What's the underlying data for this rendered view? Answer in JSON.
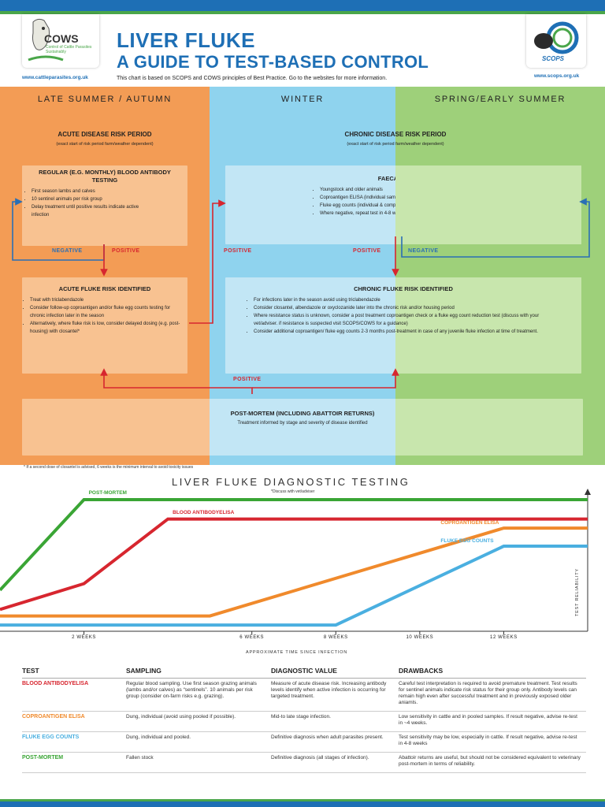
{
  "header": {
    "title_line1": "LIVER FLUKE",
    "title_line2": "A GUIDE TO TEST-BASED CONTROL",
    "subtitle": "This chart is based on SCOPS and COWS principles of Best Practice. Go to the websites for more information.",
    "url_left": "www.cattleparasites.org.uk",
    "url_right": "www.scops.org.uk",
    "logo_left_word": "COWS",
    "logo_left_sub": "Control of Cattle Parasites Sustainably",
    "logo_right_word": "SCOPS",
    "logo_right_ring": "Sustainable Control of Parasites"
  },
  "seasons": {
    "a": "LATE SUMMER / AUTUMN",
    "b": "WINTER",
    "c": "SPRING/EARLY SUMMER"
  },
  "acute_period": {
    "heading": "ACUTE DISEASE RISK PERIOD",
    "note": "(exact start of risk period farm/weather dependent)"
  },
  "chronic_period": {
    "heading": "CHRONIC DISEASE RISK PERIOD",
    "note": "(exact start of risk period farm/weather dependent)"
  },
  "blood_box": {
    "title": "REGULAR (E.G. MONTHLY) BLOOD ANTIBODY TESTING",
    "items": [
      "First season lambs and calves",
      "10 sentinel animals per risk group",
      "Delay treatment until positive results indicate active infection"
    ]
  },
  "faecal_box": {
    "title": "FAECAL TESTING",
    "items": [
      "Youngstock and older animals",
      "Coproantigen ELISA (individual samples)",
      "Fluke egg counts (individual & composite samples)",
      "Where negative, repeat test in 4-8 weeks"
    ]
  },
  "acute_box": {
    "title": "ACUTE FLUKE RISK IDENTIFIED",
    "items": [
      "Treat with triclabendazole",
      "Consider follow-up coproantigen and/or fluke egg counts testing for chronic infection later in the season",
      "Alternatively, where fluke risk is low, consider delayed dosing (e.g. post-housing) with closantel*"
    ]
  },
  "chronic_box": {
    "title": "CHRONIC FLUKE RISK IDENTIFIED",
    "items": [
      "For infections later in the season avoid using triclabendazole",
      "Consider closantel, albendazole or oxyclozanide later into the chronic risk and/or housing period",
      "Where resistance status is unknown, consider a post treatment coproantigen check or a fluke egg count reduction test (discuss with your vet/adviser. if resistance is suspected visit SCOPS/COWS for a guidance)",
      "Consider additional coproantigen/ fluke egg counts 2-3 months post-treatment in case of any juvenile fluke infection at time of treatment."
    ]
  },
  "postmortem_box": {
    "title": "POST-MORTEM (INCLUDING ABATTOIR RETURNS)",
    "note": "Treatment informed by stage and severity of disease identified"
  },
  "flow_labels": {
    "negative": "NEGATIVE",
    "positive": "POSITIVE"
  },
  "footnote": "* If a second dose of closantel is advised, 6 weeks is the minimum interval to avoid toxicity issues",
  "chart_data": {
    "type": "line",
    "title": "LIVER FLUKE DIAGNOSTIC TESTING",
    "subtitle": "*Discuss with vet/adviser",
    "xlabel": "APPROXIMATE TIME SINCE INFECTION",
    "ylabel": "TEST RELIABILITY",
    "x_tick_labels": [
      "2 WEEKS",
      "6 WEEKS",
      "8 WEEKS",
      "10 WEEKS",
      "12 WEEKS"
    ],
    "x_ticks": [
      2,
      6,
      8,
      10,
      12
    ],
    "xlim": [
      0,
      14
    ],
    "ylim": [
      0,
      10
    ],
    "grid": false,
    "series": [
      {
        "name": "POST-MORTEM",
        "color": "#3aa535",
        "x": [
          0,
          2,
          14
        ],
        "y": [
          3,
          10,
          10
        ]
      },
      {
        "name": "BLOOD ANTIBODYELISA",
        "color": "#d7262f",
        "x": [
          0,
          2,
          4,
          14
        ],
        "y": [
          1.5,
          3.5,
          8.5,
          8.5
        ]
      },
      {
        "name": "COPROANTIGEN ELISA",
        "color": "#f08a2c",
        "x": [
          0,
          5,
          12,
          14
        ],
        "y": [
          1,
          1,
          7.8,
          7.8
        ]
      },
      {
        "name": "FLUKE EGG COUNTS",
        "color": "#4aafe0",
        "x": [
          0,
          8,
          12,
          14
        ],
        "y": [
          0.3,
          0.3,
          6.4,
          6.4
        ]
      }
    ]
  },
  "table": {
    "headers": [
      "TEST",
      "SAMPLING",
      "DIAGNOSTIC VALUE",
      "DRAWBACKS"
    ],
    "rows": [
      {
        "test": "BLOOD ANTIBODYELISA",
        "color": "#d7262f",
        "sampling": "Regular blood sampling. Use first season grazing animals (lambs and/or calves) as “sentinels”. 10 animals per risk group (consider on-farm risks e.g. grazing).",
        "value": "Measure of acute disease risk. Increasing antibody levels identify when active infection is occurring for targeted treatment.",
        "drawbacks": "Careful test interpretation is required to avoid premature treatment. Test results for sentinel animals indicate risk status for their group only. Antibody levels can remain high even after successful treatment and in previously exposed older aniamls."
      },
      {
        "test": "COPROANTIGEN ELISA",
        "color": "#f08a2c",
        "sampling": "Dung, individual (avoid using pooled if possible).",
        "value": "Mid-to late stage infection.",
        "drawbacks": "Low sensitivity in cattle and in pooled samples. If result negative, advise re-test in ~4 weeks."
      },
      {
        "test": "FLUKE EGG COUNTS",
        "color": "#4aafe0",
        "sampling": "Dung, individual and pooled.",
        "value": "Definitive diagnosis when adult parasites present.",
        "drawbacks": "Test sensitivity may be low, especially in cattle. If result negative, advise re-test in 4-8 weeks"
      },
      {
        "test": "POST-MORTEM",
        "color": "#3aa535",
        "sampling": "Fallen stock",
        "value": "Definitive diagnosis (all stages of infection).",
        "drawbacks": "Abattoir returns are useful, but should not be considered equivalent to veterinary post-mortem in terms of reliability."
      }
    ]
  }
}
